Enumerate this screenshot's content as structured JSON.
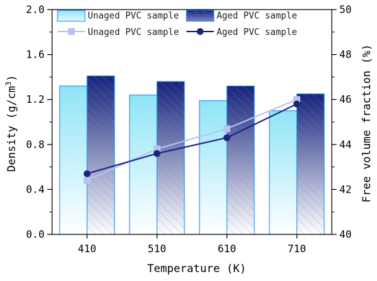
{
  "chart_data": {
    "type": "bar",
    "categories": [
      "410",
      "510",
      "610",
      "710"
    ],
    "xlabel": "Temperature (K)",
    "ylabel": "Density (g/cm3)",
    "ylabel_main": "Density (g/cm",
    "ylabel_sup": "3",
    "ylabel_tail": ")",
    "y2label": "Free volume fraction (%)",
    "ylim": [
      0,
      2.0
    ],
    "yticks": [
      0.0,
      0.4,
      0.8,
      1.2,
      1.6,
      2.0
    ],
    "ytick_labels": [
      "0.0",
      "0.4",
      "0.8",
      "1.2",
      "1.6",
      "2.0"
    ],
    "y2lim": [
      40,
      50
    ],
    "y2ticks": [
      40,
      42,
      44,
      46,
      48,
      50
    ],
    "y2tick_labels": [
      "40",
      "42",
      "44",
      "46",
      "48",
      "50"
    ],
    "bar_series": [
      {
        "name": "Unaged PVC sample",
        "values": [
          1.32,
          1.24,
          1.19,
          1.1
        ],
        "style": "light-cyan-gradient"
      },
      {
        "name": "Aged PVC sample",
        "values": [
          1.41,
          1.36,
          1.32,
          1.25
        ],
        "style": "navy-gradient-hatched"
      }
    ],
    "line_series": [
      {
        "name": "Unaged PVC sample",
        "axis": "right",
        "values": [
          42.4,
          43.8,
          44.7,
          46.0
        ],
        "marker": "square",
        "color": "#b8c2f0"
      },
      {
        "name": "Aged PVC sample",
        "axis": "right",
        "values": [
          42.7,
          43.6,
          44.3,
          45.8
        ],
        "marker": "circle",
        "color": "#1a237e"
      }
    ],
    "legend_position": "top",
    "grid": false
  }
}
